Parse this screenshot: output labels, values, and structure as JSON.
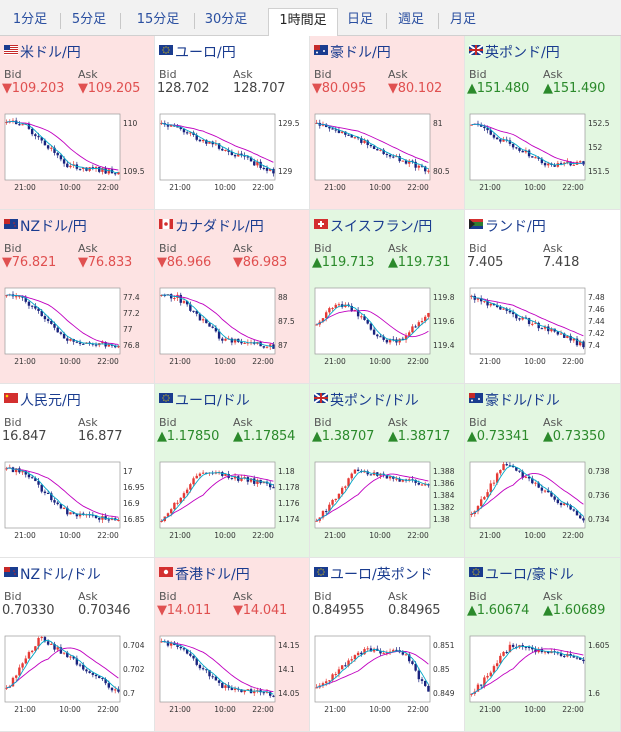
{
  "tabs": [
    {
      "label": "1分足",
      "active": false
    },
    {
      "label": "5分足",
      "active": false
    },
    {
      "label": "15分足",
      "active": false
    },
    {
      "label": "30分足",
      "active": false
    },
    {
      "label": "1時間足",
      "active": true
    },
    {
      "label": "日足",
      "active": false
    },
    {
      "label": "週足",
      "active": false
    },
    {
      "label": "月足",
      "active": false
    }
  ],
  "labels": {
    "bid": "Bid",
    "ask": "Ask"
  },
  "colors": {
    "down_bg": "#fde3e3",
    "up_bg": "#e3f7e1",
    "bear_candle": "#1a237e",
    "bull_candle": "#e53935",
    "ma_long": "#c000c0",
    "ma_short": "#00a8c8"
  },
  "x_ticks": [
    "21:00",
    "10:00",
    "22:00"
  ],
  "pairs": [
    {
      "name": "米ドル/円",
      "trend": "down",
      "flag": "us",
      "bid": "▼109.203",
      "ask": "▼109.205",
      "y_ticks": [
        "110",
        "109.5"
      ],
      "shape": "down_strong"
    },
    {
      "name": "ユーロ/円",
      "trend": "flat",
      "flag": "eu",
      "bid": "128.702",
      "ask": "128.707",
      "y_ticks": [
        "129.5",
        "129"
      ],
      "shape": "down_steady"
    },
    {
      "name": "豪ドル/円",
      "trend": "down",
      "flag": "au",
      "bid": "▼80.095",
      "ask": "▼80.102",
      "y_ticks": [
        "81",
        "80.5"
      ],
      "shape": "down_steady"
    },
    {
      "name": "英ポンド/円",
      "trend": "up",
      "flag": "gb",
      "bid": "▲151.480",
      "ask": "▲151.490",
      "y_ticks": [
        "152.5",
        "152",
        "151.5"
      ],
      "shape": "down_rebound"
    },
    {
      "name": "NZドル/円",
      "trend": "down",
      "flag": "nz",
      "bid": "▼76.821",
      "ask": "▼76.833",
      "y_ticks": [
        "77.4",
        "77.2",
        "77",
        "76.8"
      ],
      "shape": "down_strong"
    },
    {
      "name": "カナダドル/円",
      "trend": "down",
      "flag": "ca",
      "bid": "▼86.966",
      "ask": "▼86.983",
      "y_ticks": [
        "88",
        "87.5",
        "87"
      ],
      "shape": "down_strong"
    },
    {
      "name": "スイスフラン/円",
      "trend": "up",
      "flag": "ch",
      "bid": "▲119.713",
      "ask": "▲119.731",
      "y_ticks": [
        "119.8",
        "119.6",
        "119.4"
      ],
      "shape": "volatile"
    },
    {
      "name": "ランド/円",
      "trend": "flat",
      "flag": "za",
      "bid": "7.405",
      "ask": "7.418",
      "y_ticks": [
        "7.48",
        "7.46",
        "7.44",
        "7.42",
        "7.4"
      ],
      "shape": "down_steady"
    },
    {
      "name": "人民元/円",
      "trend": "flat",
      "flag": "cn",
      "bid": "16.847",
      "ask": "16.877",
      "y_ticks": [
        "17",
        "16.95",
        "16.9",
        "16.85"
      ],
      "shape": "down_strong"
    },
    {
      "name": "ユーロ/ドル",
      "trend": "up",
      "flag": "eu",
      "bid": "▲1.17850",
      "ask": "▲1.17854",
      "y_ticks": [
        "1.18",
        "1.178",
        "1.176",
        "1.174"
      ],
      "shape": "up_strong"
    },
    {
      "name": "英ポンド/ドル",
      "trend": "up",
      "flag": "gb",
      "bid": "▲1.38707",
      "ask": "▲1.38717",
      "y_ticks": [
        "1.388",
        "1.386",
        "1.384",
        "1.382",
        "1.38"
      ],
      "shape": "up_strong"
    },
    {
      "name": "豪ドル/ドル",
      "trend": "up",
      "flag": "au",
      "bid": "▲0.73341",
      "ask": "▲0.73350",
      "y_ticks": [
        "0.738",
        "0.736",
        "0.734"
      ],
      "shape": "hump"
    },
    {
      "name": "NZドル/ドル",
      "trend": "flat",
      "flag": "nz",
      "bid": "0.70330",
      "ask": "0.70346",
      "y_ticks": [
        "0.704",
        "0.702",
        "0.7"
      ],
      "shape": "hump"
    },
    {
      "name": "香港ドル/円",
      "trend": "down",
      "flag": "hk",
      "bid": "▼14.011",
      "ask": "▼14.041",
      "y_ticks": [
        "14.15",
        "14.1",
        "14.05"
      ],
      "shape": "down_strong"
    },
    {
      "name": "ユーロ/英ポンド",
      "trend": "flat",
      "flag": "eu",
      "bid": "0.84955",
      "ask": "0.84965",
      "y_ticks": [
        "0.851",
        "0.85",
        "0.849"
      ],
      "shape": "up_then_drop"
    },
    {
      "name": "ユーロ/豪ドル",
      "trend": "up",
      "flag": "eu",
      "bid": "▲1.60674",
      "ask": "▲1.60689",
      "y_ticks": [
        "1.605",
        "1.6"
      ],
      "shape": "up_strong"
    }
  ]
}
